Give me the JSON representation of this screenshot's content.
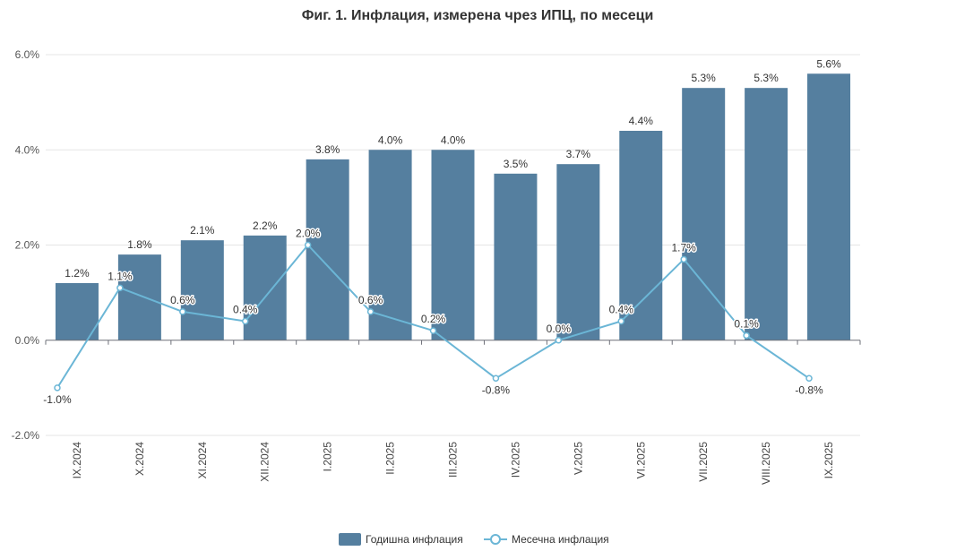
{
  "chart_data": {
    "type": "bar",
    "title": "Фиг. 1. Инфлация, измерена чрез ИПЦ, по месеци",
    "categories": [
      "IX.2024",
      "X.2024",
      "XI.2024",
      "XII.2024",
      "I.2025",
      "II.2025",
      "III.2025",
      "IV.2025",
      "V.2025",
      "VI.2025",
      "VII.2025",
      "VIII.2025",
      "IX.2025"
    ],
    "series": [
      {
        "name": "Годишна инфлация",
        "type": "bar",
        "values": [
          1.2,
          1.8,
          2.1,
          2.2,
          3.8,
          4.0,
          4.0,
          3.5,
          3.7,
          4.4,
          5.3,
          5.3,
          5.6
        ],
        "labels": [
          "1.2%",
          "1.8%",
          "2.1%",
          "2.2%",
          "3.8%",
          "4.0%",
          "4.0%",
          "3.5%",
          "3.7%",
          "4.4%",
          "5.3%",
          "5.3%",
          "5.6%"
        ],
        "color": "#557f9f"
      },
      {
        "name": "Месечна инфлация",
        "type": "line",
        "values": [
          -1.0,
          1.1,
          0.6,
          0.4,
          2.0,
          0.6,
          0.2,
          -0.8,
          0.0,
          0.4,
          1.7,
          0.1,
          -0.8
        ],
        "labels": [
          "-1.0%",
          "1.1%",
          "0.6%",
          "0.4%",
          "2.0%",
          "0.6%",
          "0.2%",
          "-0.8%",
          "0.0%",
          "0.4%",
          "1.7%",
          "0.1%",
          "-0.8%"
        ],
        "color": "#6bb6d6"
      }
    ],
    "ylim": [
      -2.0,
      6.0
    ],
    "yticks": [
      -2.0,
      0.0,
      2.0,
      4.0,
      6.0
    ],
    "ytick_labels": [
      "-2.0%",
      "0.0%",
      "2.0%",
      "4.0%",
      "6.0%"
    ],
    "xlabel": "",
    "ylabel": "",
    "grid": true,
    "legend_position": "bottom-center"
  }
}
